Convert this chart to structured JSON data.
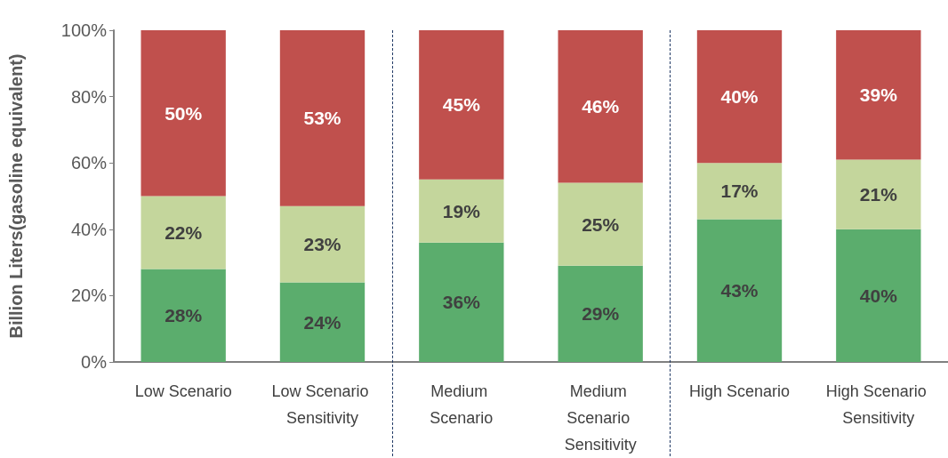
{
  "chart_data": {
    "type": "bar",
    "stacked": true,
    "grid": false,
    "ylabel": "Billion Liters(gasoline equivalent)",
    "categories": [
      "Low Scenario",
      "Low Scenario Sensitivity",
      "Medium Scenario",
      "Medium Scenario Sensitivity",
      "High Scenario",
      "High Scenario Sensitivity"
    ],
    "series": [
      {
        "color": "#5bad6d",
        "values": [
          28,
          24,
          36,
          29,
          43,
          40
        ],
        "value_labels": [
          "28%",
          "24%",
          "36%",
          "29%",
          "43%",
          "40%"
        ]
      },
      {
        "color": "#c4d69c",
        "values": [
          22,
          23,
          19,
          25,
          17,
          21
        ],
        "value_labels": [
          "22%",
          "23%",
          "19%",
          "25%",
          "17%",
          "21%"
        ]
      },
      {
        "color": "#c0504d",
        "values": [
          50,
          53,
          45,
          46,
          40,
          39
        ],
        "value_labels": [
          "50%",
          "53%",
          "45%",
          "46%",
          "40%",
          "39%"
        ]
      }
    ],
    "ylim": [
      0,
      100
    ],
    "yticks": [
      {
        "value": 0,
        "label": "0%"
      },
      {
        "value": 20,
        "label": "20%"
      },
      {
        "value": 40,
        "label": "40%"
      },
      {
        "value": 60,
        "label": "60%"
      },
      {
        "value": 80,
        "label": "80%"
      },
      {
        "value": 100,
        "label": "100%"
      }
    ]
  }
}
